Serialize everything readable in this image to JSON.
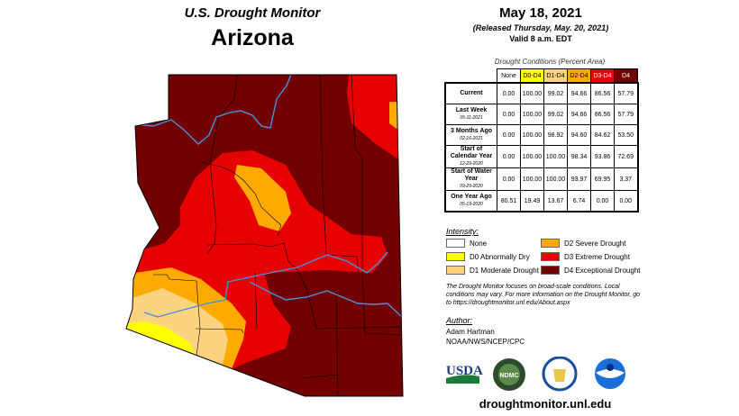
{
  "header": {
    "program": "U.S. Drought Monitor",
    "state": "Arizona"
  },
  "info": {
    "date": "May 18, 2021",
    "released": "(Released Thursday, May. 20, 2021)",
    "valid": "Valid 8 a.m. EDT"
  },
  "table": {
    "caption": "Drought Conditions (Percent Area)",
    "columns": [
      "None",
      "D0-D4",
      "D1-D4",
      "D2-D4",
      "D3-D4",
      "D4"
    ],
    "rows": [
      {
        "label": "Current",
        "date": "",
        "values": [
          "0.00",
          "100.00",
          "99.02",
          "94.66",
          "86.56",
          "57.79"
        ]
      },
      {
        "label": "Last Week",
        "date": "05-11-2021",
        "values": [
          "0.00",
          "100.00",
          "99.02",
          "94.66",
          "86.56",
          "57.79"
        ]
      },
      {
        "label": "3 Months Ago",
        "date": "02-16-2021",
        "values": [
          "0.00",
          "100.00",
          "98.92",
          "94.60",
          "84.62",
          "53.50"
        ]
      },
      {
        "label": "Start of Calendar Year",
        "date": "12-29-2020",
        "values": [
          "0.00",
          "100.00",
          "100.00",
          "98.34",
          "93.86",
          "72.69"
        ]
      },
      {
        "label": "Start of Water Year",
        "date": "09-29-2020",
        "values": [
          "0.00",
          "100.00",
          "100.00",
          "93.97",
          "69.95",
          "3.37"
        ]
      },
      {
        "label": "One Year Ago",
        "date": "05-19-2020",
        "values": [
          "80.51",
          "19.49",
          "13.67",
          "6.74",
          "0.00",
          "0.00"
        ]
      }
    ]
  },
  "legend": {
    "title": "Intensity:",
    "items": [
      {
        "label": "None",
        "color": "#ffffff"
      },
      {
        "label": "D0 Abnormally Dry",
        "color": "#ffff00"
      },
      {
        "label": "D1 Moderate Drought",
        "color": "#fcd37f"
      },
      {
        "label": "D2 Severe Drought",
        "color": "#ffaa00"
      },
      {
        "label": "D3 Extreme Drought",
        "color": "#e60000"
      },
      {
        "label": "D4 Exceptional Drought",
        "color": "#730000"
      }
    ]
  },
  "note": "The Drought Monitor focuses on broad-scale conditions. Local conditions may vary. For more information on the Drought Monitor, go to https://droughtmonitor.unl.edu/About.aspx",
  "author": {
    "title": "Author:",
    "name": "Adam Hartman",
    "org": "NOAA/NWS/NCEP/CPC"
  },
  "logos": [
    "USDA",
    "NDMC",
    "Department of Commerce",
    "NOAA"
  ],
  "url": "droughtmonitor.unl.edu"
}
